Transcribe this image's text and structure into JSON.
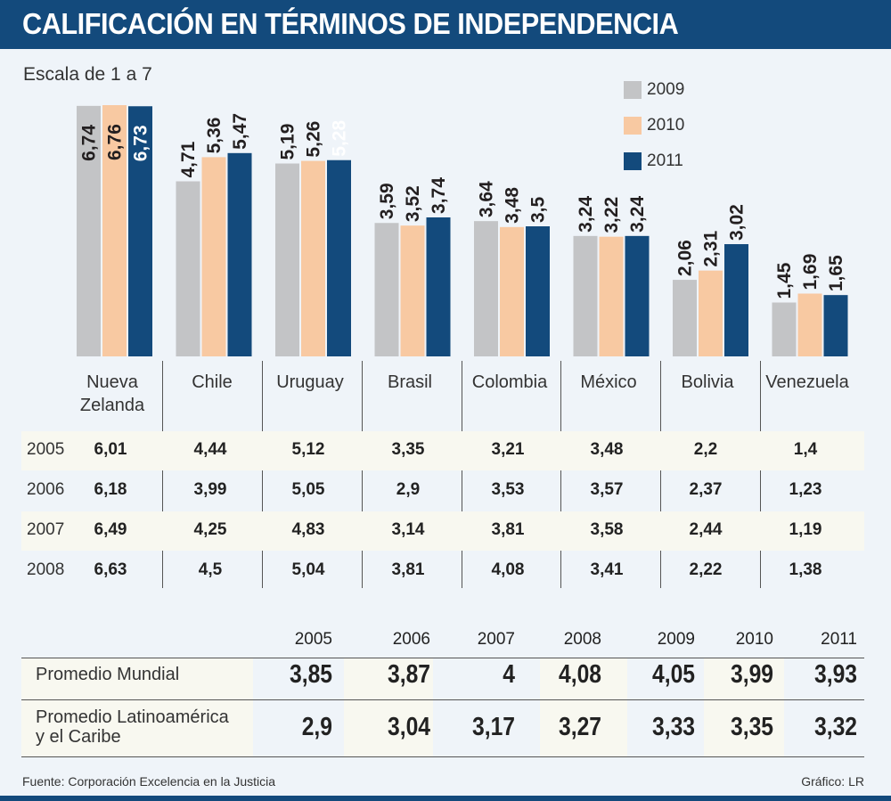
{
  "header": {
    "title": "CALIFICACIÓN EN TÉRMINOS DE INDEPENDENCIA"
  },
  "footer": {
    "source": "Fuente: Corporación Excelencia en la Justicia",
    "credit": "Gráfico: LR"
  },
  "colors": {
    "brand": "#134a7c",
    "s2009": "#c3c4c6",
    "s2010": "#f8c9a2",
    "s2011": "#134a7c"
  },
  "chart_data": {
    "type": "bar",
    "title": "CALIFICACIÓN EN TÉRMINOS DE INDEPENDENCIA",
    "subtitle": "Escala de 1 a 7",
    "xlabel": "",
    "ylabel": "",
    "ylim": [
      0,
      7
    ],
    "grid": false,
    "legend_position": "top-right",
    "categories": [
      "Nueva Zelanda",
      "Chile",
      "Uruguay",
      "Brasil",
      "Colombia",
      "México",
      "Bolivia",
      "Venezuela"
    ],
    "category_display": [
      [
        "Nueva",
        "Zelanda"
      ],
      [
        "Chile"
      ],
      [
        "Uruguay"
      ],
      [
        "Brasil"
      ],
      [
        "Colombia"
      ],
      [
        "México"
      ],
      [
        "Bolivia"
      ],
      [
        "Venezuela"
      ]
    ],
    "series": [
      {
        "name": "2009",
        "color": "#c3c4c6",
        "values": [
          6.74,
          4.71,
          5.19,
          3.59,
          3.64,
          3.24,
          2.06,
          1.45
        ],
        "labels": [
          "6,74",
          "4,71",
          "5,19",
          "3,59",
          "3,64",
          "3,24",
          "2,06",
          "1,45"
        ]
      },
      {
        "name": "2010",
        "color": "#f8c9a2",
        "values": [
          6.76,
          5.36,
          5.26,
          3.52,
          3.48,
          3.22,
          2.31,
          1.69
        ],
        "labels": [
          "6,76",
          "5,36",
          "5,26",
          "3,52",
          "3,48",
          "3,22",
          "2,31",
          "1,69"
        ]
      },
      {
        "name": "2011",
        "color": "#134a7c",
        "values": [
          6.73,
          5.47,
          5.28,
          3.74,
          3.5,
          3.24,
          3.02,
          1.65
        ],
        "labels": [
          "6,73",
          "5,47",
          "5,28",
          "3,74",
          "3,5",
          "3,24",
          "3,02",
          "1,65"
        ]
      }
    ],
    "historical_table": {
      "rows": [
        {
          "year": "2005",
          "values": [
            "6,01",
            "4,44",
            "5,12",
            "3,35",
            "3,21",
            "3,48",
            "2,2",
            "1,4"
          ]
        },
        {
          "year": "2006",
          "values": [
            "6,18",
            "3,99",
            "5,05",
            "2,9",
            "3,53",
            "3,57",
            "2,37",
            "1,23"
          ]
        },
        {
          "year": "2007",
          "values": [
            "6,49",
            "4,25",
            "4,83",
            "3,14",
            "3,81",
            "3,58",
            "2,44",
            "1,19"
          ]
        },
        {
          "year": "2008",
          "values": [
            "6,63",
            "4,5",
            "5,04",
            "3,81",
            "4,08",
            "3,41",
            "2,22",
            "1,38"
          ]
        }
      ]
    },
    "averages_table": {
      "years": [
        "2005",
        "2006",
        "2007",
        "2008",
        "2009",
        "2010",
        "2011"
      ],
      "rows": [
        {
          "label": [
            "Promedio Mundial"
          ],
          "values": [
            "3,85",
            "3,87",
            "4",
            "4,08",
            "4,05",
            "3,99",
            "3,93"
          ]
        },
        {
          "label": [
            "Promedio Latinoamérica",
            "y el Caribe"
          ],
          "values": [
            "2,9",
            "3,04",
            "3,17",
            "3,27",
            "3,33",
            "3,35",
            "3,32"
          ]
        }
      ]
    }
  }
}
